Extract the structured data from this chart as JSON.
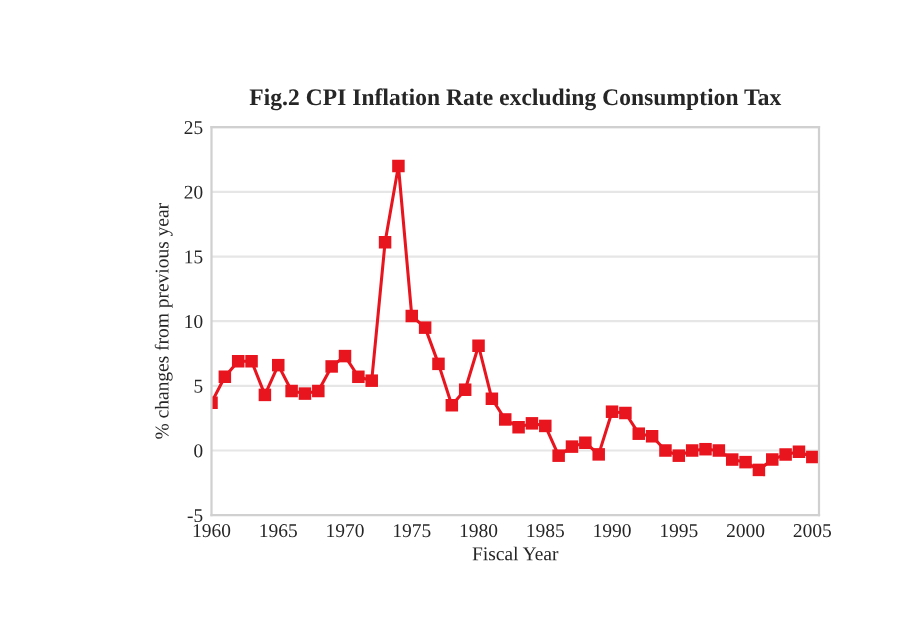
{
  "chart_data": {
    "type": "line",
    "title": "Fig.2 CPI Inflation Rate excluding Consumption Tax",
    "xlabel": "Fiscal Year",
    "ylabel": "% changes from previous year",
    "x": [
      1960,
      1961,
      1962,
      1963,
      1964,
      1965,
      1966,
      1967,
      1968,
      1969,
      1970,
      1971,
      1972,
      1973,
      1974,
      1975,
      1976,
      1977,
      1978,
      1979,
      1980,
      1981,
      1982,
      1983,
      1984,
      1985,
      1986,
      1987,
      1988,
      1989,
      1990,
      1991,
      1992,
      1993,
      1994,
      1995,
      1996,
      1997,
      1998,
      1999,
      2000,
      2001,
      2002,
      2003,
      2004,
      2005
    ],
    "series": [
      {
        "color": "#e8141e",
        "values": [
          3.7,
          5.7,
          6.9,
          6.9,
          4.3,
          6.6,
          4.6,
          4.4,
          4.6,
          6.5,
          7.3,
          5.7,
          5.4,
          16.1,
          22.0,
          10.4,
          9.5,
          6.7,
          3.5,
          4.7,
          8.1,
          4.0,
          2.4,
          1.8,
          2.1,
          1.9,
          -0.4,
          0.3,
          0.6,
          -0.3,
          3.0,
          2.9,
          1.3,
          1.1,
          0.0,
          -0.4,
          0.0,
          0.1,
          0.0,
          -0.7,
          -0.9,
          -1.5,
          -0.7,
          -0.3,
          -0.1,
          -0.5
        ]
      }
    ],
    "xlim": [
      1960,
      2005.5
    ],
    "xticks": [
      1960,
      1965,
      1970,
      1975,
      1980,
      1985,
      1990,
      1995,
      2000,
      2005
    ],
    "ylim": [
      -5,
      25
    ],
    "yticks": [
      -5,
      0,
      5,
      10,
      15,
      20,
      25
    ],
    "grid": "y",
    "marker": "square",
    "line_style": "solid"
  }
}
